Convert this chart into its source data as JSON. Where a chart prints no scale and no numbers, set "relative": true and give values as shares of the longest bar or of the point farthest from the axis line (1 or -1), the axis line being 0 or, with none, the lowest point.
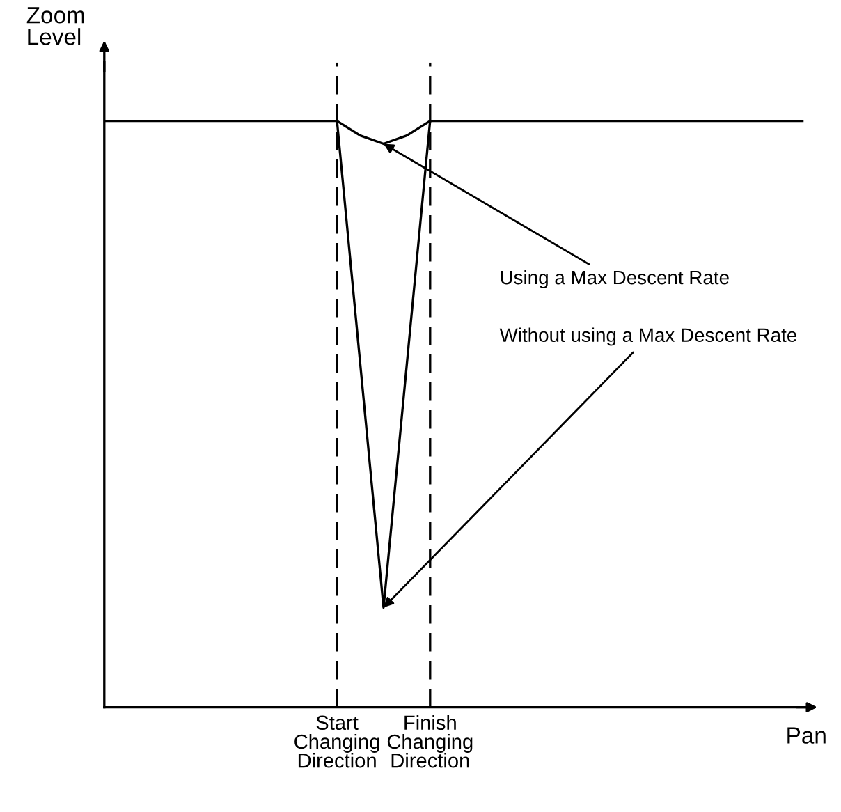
{
  "chart_data": {
    "type": "line",
    "relative": true,
    "xlabel": "Pan",
    "ylabel": "Zoom\nLevel",
    "tick_labels": "x",
    "grid": "x",
    "marker": "none",
    "categories": [
      null,
      null,
      null,
      null,
      null,
      null,
      null,
      null,
      null,
      null,
      "Start\nChanging\nDirection",
      null,
      null,
      null,
      "Finish\nChanging\nDirection",
      null,
      null,
      null,
      null,
      null,
      null,
      null,
      null,
      null,
      null,
      null,
      null,
      null,
      null,
      null,
      null
    ],
    "series": [
      {
        "color": "#000000",
        "values": [
          1,
          1,
          1,
          1,
          1,
          1,
          1,
          1,
          1,
          1,
          1,
          0.975,
          0.961,
          0.975,
          1,
          1,
          1,
          1,
          1,
          1,
          1,
          1,
          1,
          1,
          1,
          1,
          1,
          1,
          1,
          1,
          1
        ]
      },
      {
        "color": "#000000",
        "values": [
          null,
          null,
          null,
          null,
          null,
          null,
          null,
          null,
          null,
          null,
          1,
          null,
          0.17,
          null,
          1,
          null,
          null,
          null,
          null,
          null,
          null,
          null,
          null,
          null,
          null,
          null,
          null,
          null,
          null,
          null,
          null
        ]
      }
    ],
    "annotations": [
      "Using a Max Descent Rate",
      "Without using a Max Descent Rate"
    ]
  }
}
